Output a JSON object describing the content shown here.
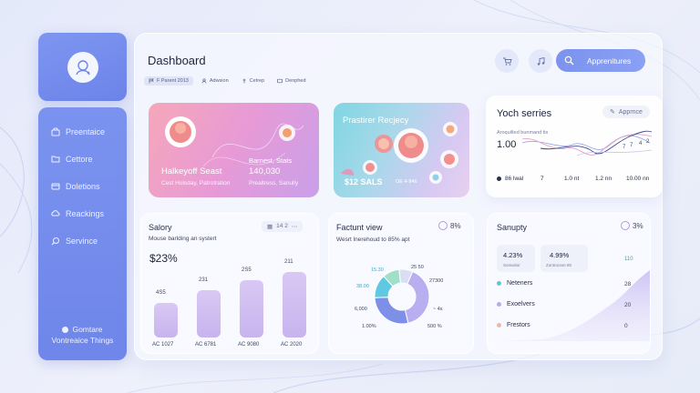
{
  "sidebar": {
    "items": [
      {
        "label": "Preentaice",
        "icon": "bag-icon"
      },
      {
        "label": "Cettore",
        "icon": "folder-icon"
      },
      {
        "label": "Doletions",
        "icon": "folder-icon"
      },
      {
        "label": "Reackings",
        "icon": "cloud-icon"
      },
      {
        "label": "Servince",
        "icon": "search-icon"
      }
    ],
    "footer_line1": "Gomtare",
    "footer_line2": "Vontreaice Things"
  },
  "header": {
    "title": "Dashboard",
    "crumbs": [
      {
        "label": "F Parent 2013",
        "icon": "flag-icon"
      },
      {
        "label": "Adwsion",
        "icon": "person-icon"
      },
      {
        "label": "Cetrep",
        "icon": "pin-icon"
      },
      {
        "label": "Denphed",
        "icon": "card-icon"
      }
    ],
    "appointments_label": "Apprenitures"
  },
  "hero1": {
    "name": "Halkeyoff Seast",
    "sub": "Cest Holsday, Patrotration",
    "stat_label": "Barnest, Stats",
    "stat_value": "140,030",
    "stat_sub": "Prealtress, Sanully"
  },
  "hero2": {
    "title": "Prastirer Recjecy",
    "value_label": "$12 SALS",
    "value_sub": "OE 4·846"
  },
  "series": {
    "title": "Yoch serries",
    "badge": "Apprnce",
    "sub": "Aroquilted bunmand tis",
    "value": "1.00",
    "legend": [
      {
        "label": "86 lwal",
        "color": "#2a2f4a"
      },
      {
        "label": "7"
      },
      {
        "label": "1.0 nt"
      },
      {
        "label": "1.2 nn"
      },
      {
        "label": "10.00 nn"
      }
    ],
    "chart_labels": [
      "7",
      "7",
      "4",
      "2"
    ]
  },
  "salary": {
    "title": "Salory",
    "filter": "14 2",
    "sub": "Mouse barlding an systert",
    "big_value": "$23%",
    "bars": [
      {
        "tag": "4S5",
        "value": 38,
        "xlabel": "AC 1027"
      },
      {
        "tag": "231",
        "value": 52,
        "xlabel": "AC 6781"
      },
      {
        "tag": "2S5",
        "value": 63,
        "xlabel": "AC 9080"
      },
      {
        "tag": "211",
        "value": 72,
        "xlabel": "AC 2020"
      }
    ]
  },
  "factunt": {
    "title": "Factunt view",
    "badge": "8%",
    "sub": "Wesrt lnerehoud to 85% apt",
    "labels": [
      "15.30",
      "25 50",
      "38.00",
      "27300",
      "6,000",
      "1.00%",
      "500 %",
      "~ 4s"
    ],
    "slices": [
      {
        "value": 40,
        "color": "#b9aef0"
      },
      {
        "value": 28,
        "color": "#7e8fe8"
      },
      {
        "value": 14,
        "color": "#5ec9e0"
      },
      {
        "value": 10,
        "color": "#9fe0c8"
      },
      {
        "value": 8,
        "color": "#d9def6"
      }
    ]
  },
  "sanupty": {
    "title": "Sanupty",
    "badge": "3%",
    "stat1_value": "4.23%",
    "stat1_label": "Somwitor",
    "stat2_value": "4.99%",
    "stat2_label": "Zontrocare 80",
    "legend": [
      {
        "label": "Neteners",
        "value": "28",
        "color": "#5cc6d6"
      },
      {
        "label": "Exoelvers",
        "value": "20",
        "color": "#b9a9ee"
      },
      {
        "label": "Frestors",
        "value": "0",
        "color": "#f3b6a6"
      }
    ],
    "top_value": "110"
  }
}
